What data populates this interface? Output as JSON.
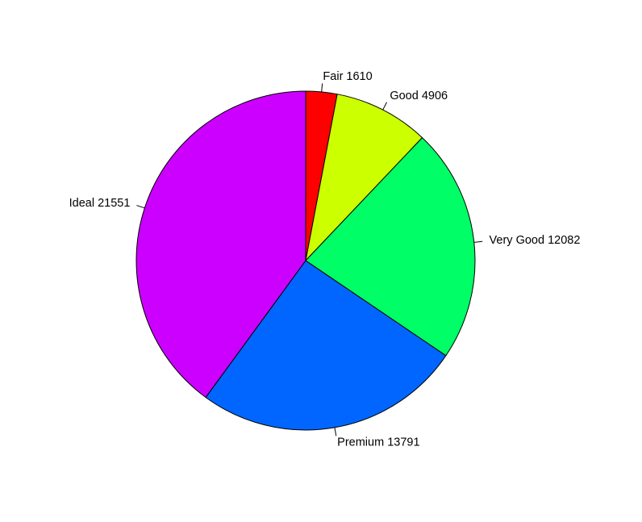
{
  "chart_data": {
    "type": "pie",
    "title": "",
    "start_angle_deg": 90,
    "direction": "clockwise",
    "slices": [
      {
        "label": "Fair 1610",
        "category": "Fair",
        "value": 1610,
        "color": "#FF0000"
      },
      {
        "label": "Good 4906",
        "category": "Good",
        "value": 4906,
        "color": "#CCFF00"
      },
      {
        "label": "Very Good 12082",
        "category": "Very Good",
        "value": 12082,
        "color": "#00FF66"
      },
      {
        "label": "Premium 13791",
        "category": "Premium",
        "value": 13791,
        "color": "#0066FF"
      },
      {
        "label": "Ideal 21551",
        "category": "Ideal",
        "value": 21551,
        "color": "#CC00FF"
      }
    ]
  }
}
